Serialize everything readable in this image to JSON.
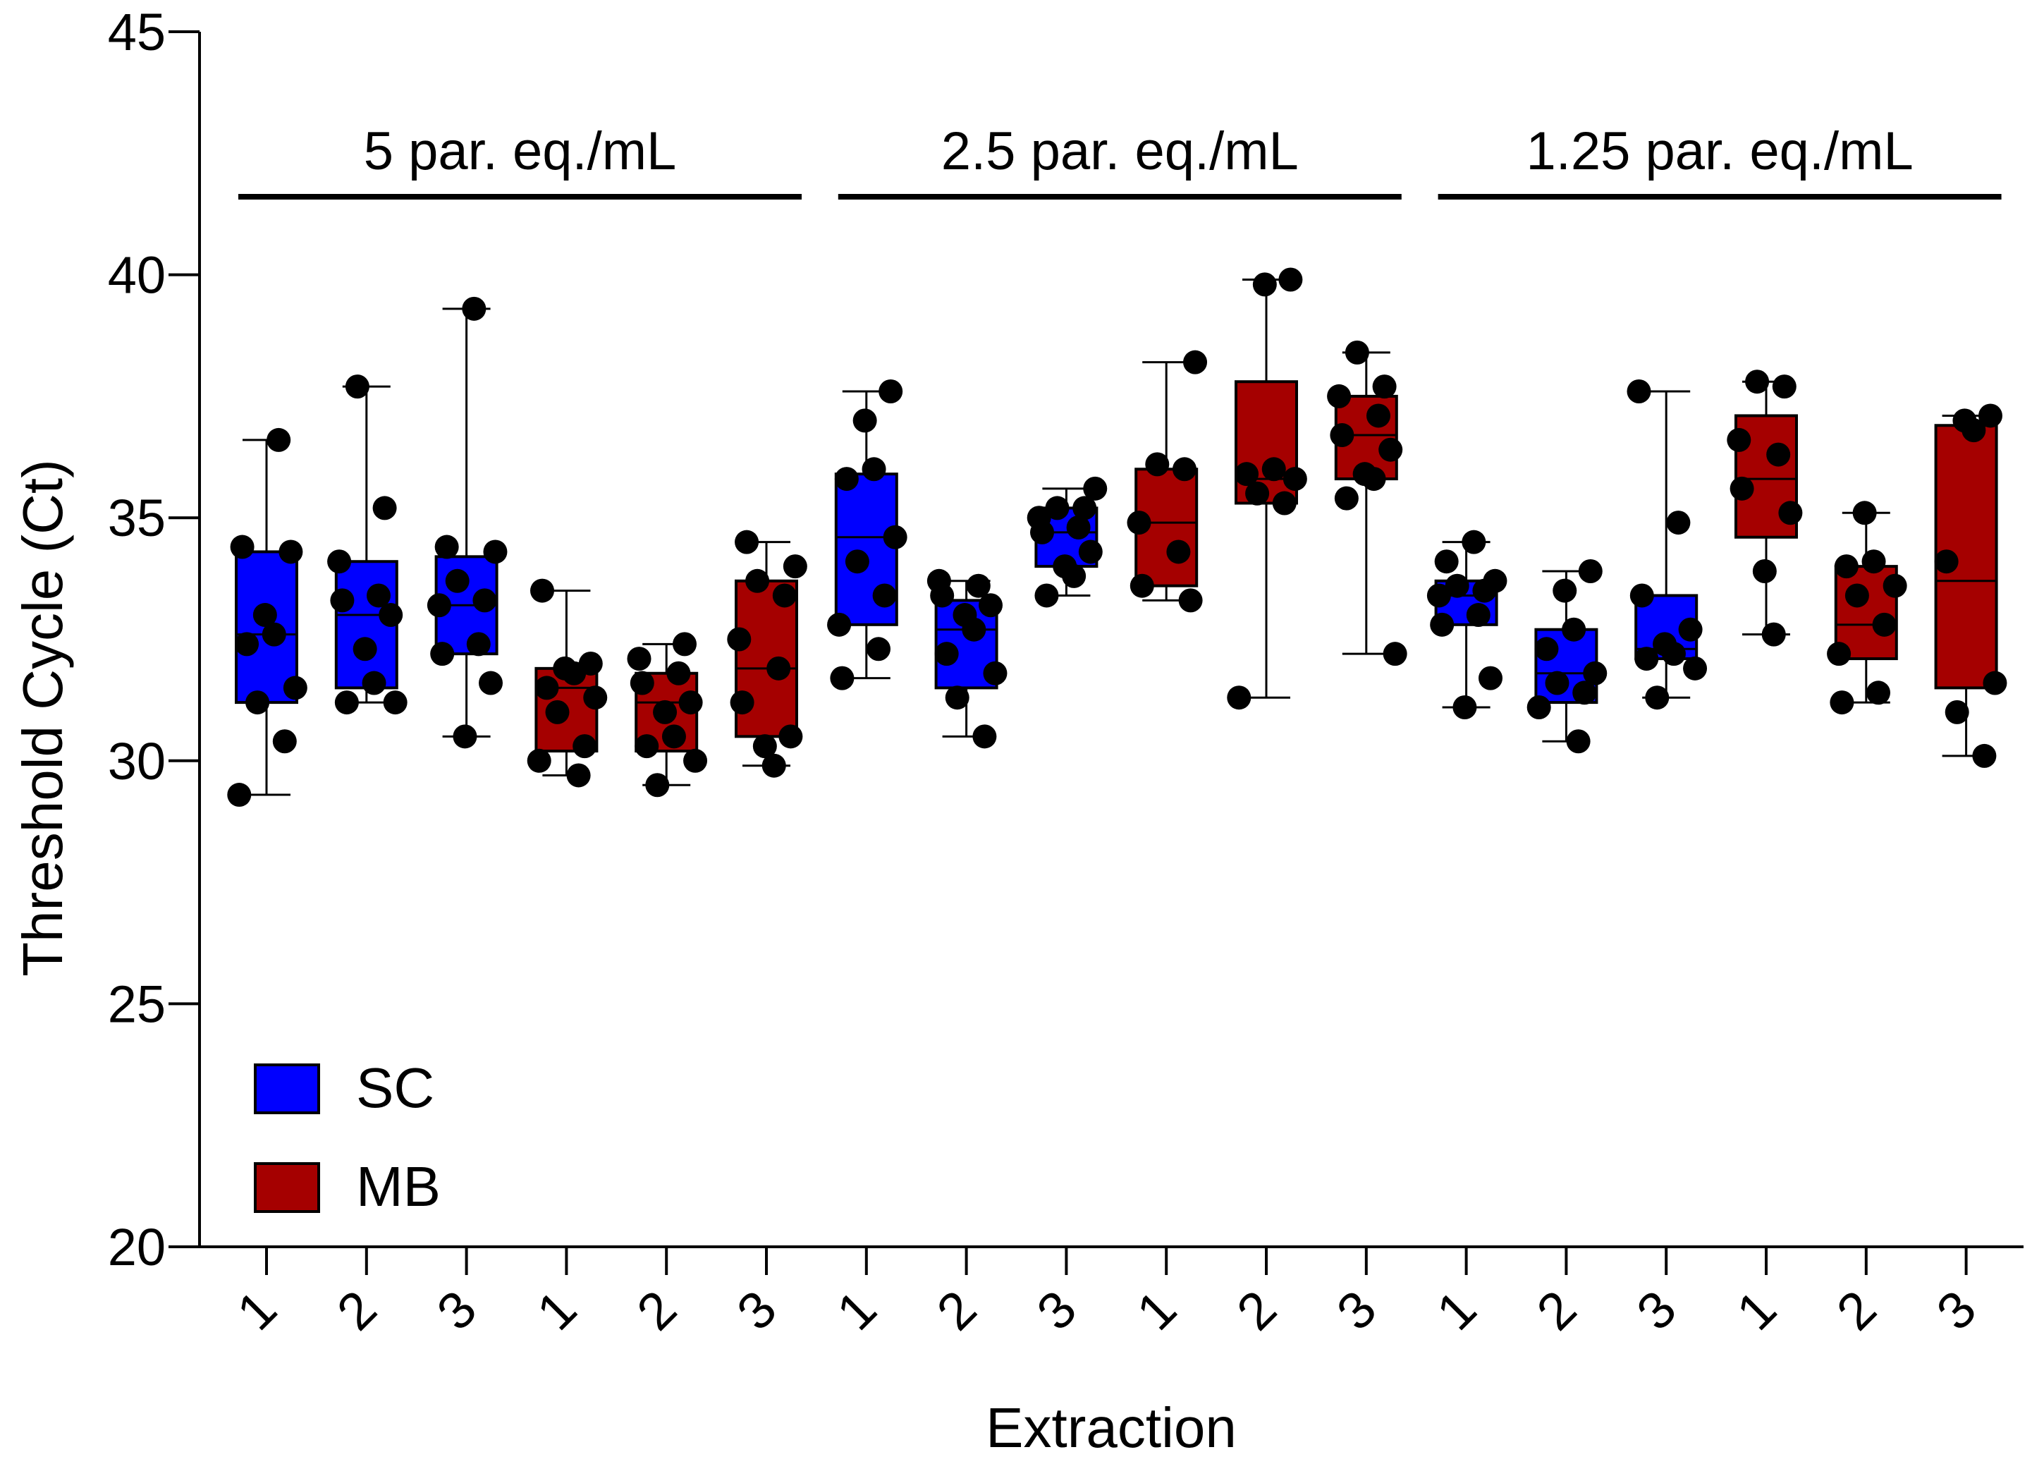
{
  "chart_data": {
    "type": "boxplot",
    "title": "",
    "xlabel": "Extraction",
    "ylabel": "Threshold Cycle (Ct)",
    "ylim": [
      20,
      45
    ],
    "yticks": [
      "20",
      "25",
      "30",
      "35",
      "40",
      "45"
    ],
    "ytick_values": [
      20,
      25,
      30,
      35,
      40,
      45
    ],
    "legend": {
      "placement": "bottom-left",
      "items": [
        {
          "name": "SC",
          "color": "#0000FF"
        },
        {
          "name": "MB",
          "color": "#A50000"
        }
      ]
    },
    "groups": [
      {
        "label": "5 par. eq./mL",
        "first_box": 0,
        "last_box": 5
      },
      {
        "label": "2.5 par. eq./mL",
        "first_box": 6,
        "last_box": 11
      },
      {
        "label": "1.25 par. eq./mL",
        "first_box": 12,
        "last_box": 17
      }
    ],
    "boxes": [
      {
        "x": "1",
        "series": "SC",
        "color": "#0000FF",
        "min": 29.3,
        "q1": 31.2,
        "median": 32.6,
        "q3": 34.3,
        "max": 36.6,
        "points": [
          29.3,
          30.4,
          31.2,
          31.5,
          32.4,
          32.6,
          33.0,
          34.3,
          34.4,
          36.6
        ]
      },
      {
        "x": "2",
        "series": "SC",
        "color": "#0000FF",
        "min": 31.2,
        "q1": 31.5,
        "median": 33.0,
        "q3": 34.1,
        "max": 37.7,
        "points": [
          31.2,
          31.2,
          31.6,
          32.3,
          33.0,
          33.3,
          33.4,
          34.1,
          35.2,
          37.7
        ]
      },
      {
        "x": "3",
        "series": "SC",
        "color": "#0000FF",
        "min": 30.5,
        "q1": 32.2,
        "median": 33.2,
        "q3": 34.2,
        "max": 39.3,
        "points": [
          30.5,
          31.6,
          32.2,
          32.4,
          33.2,
          33.3,
          33.7,
          34.3,
          34.4,
          39.3
        ]
      },
      {
        "x": "1",
        "series": "MB",
        "color": "#A50000",
        "min": 29.7,
        "q1": 30.2,
        "median": 31.5,
        "q3": 31.9,
        "max": 33.5,
        "points": [
          29.7,
          30.0,
          30.3,
          31.0,
          31.3,
          31.5,
          31.8,
          31.9,
          32.0,
          33.5
        ]
      },
      {
        "x": "2",
        "series": "MB",
        "color": "#A50000",
        "min": 29.5,
        "q1": 30.2,
        "median": 31.2,
        "q3": 31.8,
        "max": 32.4,
        "points": [
          29.5,
          30.0,
          30.3,
          30.5,
          31.0,
          31.2,
          31.6,
          31.8,
          32.1,
          32.4
        ]
      },
      {
        "x": "3",
        "series": "MB",
        "color": "#A50000",
        "min": 29.9,
        "q1": 30.5,
        "median": 31.9,
        "q3": 33.7,
        "max": 34.5,
        "points": [
          29.9,
          30.3,
          30.5,
          31.2,
          31.9,
          32.5,
          33.4,
          33.7,
          34.0,
          34.5
        ]
      },
      {
        "x": "1",
        "series": "SC",
        "color": "#0000FF",
        "min": 31.7,
        "q1": 32.8,
        "median": 34.6,
        "q3": 35.9,
        "max": 37.6,
        "points": [
          31.7,
          32.3,
          32.8,
          33.4,
          34.1,
          34.6,
          35.8,
          36.0,
          37.0,
          37.6
        ]
      },
      {
        "x": "2",
        "series": "SC",
        "color": "#0000FF",
        "min": 30.5,
        "q1": 31.5,
        "median": 32.7,
        "q3": 33.3,
        "max": 33.7,
        "points": [
          30.5,
          31.3,
          31.8,
          32.2,
          32.7,
          33.0,
          33.2,
          33.4,
          33.6,
          33.7
        ]
      },
      {
        "x": "3",
        "series": "SC",
        "color": "#0000FF",
        "min": 33.4,
        "q1": 34.0,
        "median": 34.7,
        "q3": 35.2,
        "max": 35.6,
        "points": [
          33.4,
          33.8,
          34.0,
          34.3,
          34.7,
          34.8,
          35.0,
          35.2,
          35.2,
          35.6
        ]
      },
      {
        "x": "1",
        "series": "MB",
        "color": "#A50000",
        "min": 33.3,
        "q1": 33.6,
        "median": 34.9,
        "q3": 36.0,
        "max": 38.2,
        "points": [
          33.3,
          33.6,
          34.3,
          34.9,
          36.0,
          36.1,
          38.2
        ]
      },
      {
        "x": "2",
        "series": "MB",
        "color": "#A50000",
        "min": 31.3,
        "q1": 35.3,
        "median": 35.8,
        "q3": 37.8,
        "max": 39.9,
        "points": [
          31.3,
          35.3,
          35.5,
          35.8,
          35.9,
          36.0,
          39.8,
          39.9
        ]
      },
      {
        "x": "3",
        "series": "MB",
        "color": "#A50000",
        "min": 32.2,
        "q1": 35.8,
        "median": 36.7,
        "q3": 37.5,
        "max": 38.4,
        "points": [
          32.2,
          35.4,
          35.8,
          35.9,
          36.4,
          36.7,
          37.1,
          37.5,
          37.7,
          38.4
        ]
      },
      {
        "x": "1",
        "series": "SC",
        "color": "#0000FF",
        "min": 31.1,
        "q1": 32.8,
        "median": 33.4,
        "q3": 33.7,
        "max": 34.5,
        "points": [
          31.1,
          31.7,
          32.8,
          33.0,
          33.4,
          33.5,
          33.6,
          33.7,
          34.1,
          34.5
        ]
      },
      {
        "x": "2",
        "series": "SC",
        "color": "#0000FF",
        "min": 30.4,
        "q1": 31.2,
        "median": 31.8,
        "q3": 32.7,
        "max": 33.9,
        "points": [
          30.4,
          31.1,
          31.4,
          31.6,
          31.8,
          32.3,
          32.7,
          33.5,
          33.9
        ]
      },
      {
        "x": "3",
        "series": "SC",
        "color": "#0000FF",
        "min": 31.3,
        "q1": 32.1,
        "median": 32.3,
        "q3": 33.4,
        "max": 37.6,
        "points": [
          31.3,
          31.9,
          32.1,
          32.2,
          32.4,
          32.7,
          33.4,
          34.9,
          37.6
        ]
      },
      {
        "x": "1",
        "series": "MB",
        "color": "#A50000",
        "min": 32.6,
        "q1": 34.6,
        "median": 35.8,
        "q3": 37.1,
        "max": 37.8,
        "points": [
          32.6,
          33.9,
          35.1,
          35.6,
          36.3,
          36.6,
          37.7,
          37.8
        ]
      },
      {
        "x": "2",
        "series": "MB",
        "color": "#A50000",
        "min": 31.2,
        "q1": 32.1,
        "median": 32.8,
        "q3": 34.0,
        "max": 35.1,
        "points": [
          31.2,
          31.4,
          32.2,
          32.8,
          33.4,
          33.6,
          34.0,
          34.1,
          35.1
        ]
      },
      {
        "x": "3",
        "series": "MB",
        "color": "#A50000",
        "min": 30.1,
        "q1": 31.5,
        "median": 33.7,
        "q3": 36.9,
        "max": 37.1,
        "points": [
          30.1,
          31.0,
          31.6,
          34.1,
          36.8,
          37.0,
          37.1
        ]
      }
    ]
  }
}
